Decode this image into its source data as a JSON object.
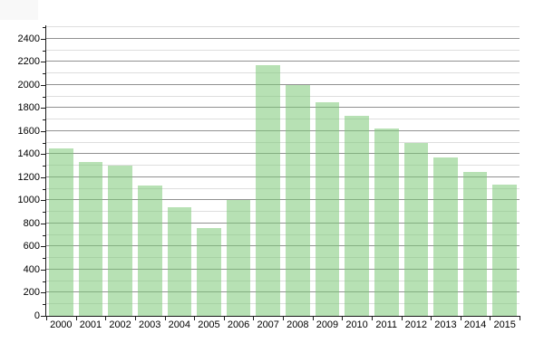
{
  "chart_data": {
    "type": "bar",
    "title": "",
    "xlabel": "",
    "ylabel": "",
    "categories": [
      "2000",
      "2001",
      "2002",
      "2003",
      "2004",
      "2005",
      "2006",
      "2007",
      "2008",
      "2009",
      "2010",
      "2011",
      "2012",
      "2013",
      "2014",
      "2015"
    ],
    "values": [
      1450,
      1330,
      1300,
      1130,
      940,
      760,
      1000,
      2170,
      2000,
      1850,
      1730,
      1620,
      1500,
      1370,
      1250,
      1140
    ],
    "ylim": [
      0,
      2500
    ],
    "y_major_step": 200,
    "y_minor_step": 100,
    "y_tick_labels": [
      "0",
      "200",
      "400",
      "600",
      "800",
      "1000",
      "1200",
      "1400",
      "1600",
      "1800",
      "2000",
      "2200",
      "2400"
    ],
    "grid": "horizontal major+minor, on",
    "legend": "none",
    "colors": {
      "bar_fill": "rgba(124,200,118,0.55)",
      "bar_fill_hex_apparent": "#b7e1b4",
      "gridline_major": "#919191",
      "gridline_minor": "#dedede",
      "axis": "#1a1a1a",
      "text": "#000000",
      "background": "#ffffff"
    }
  }
}
